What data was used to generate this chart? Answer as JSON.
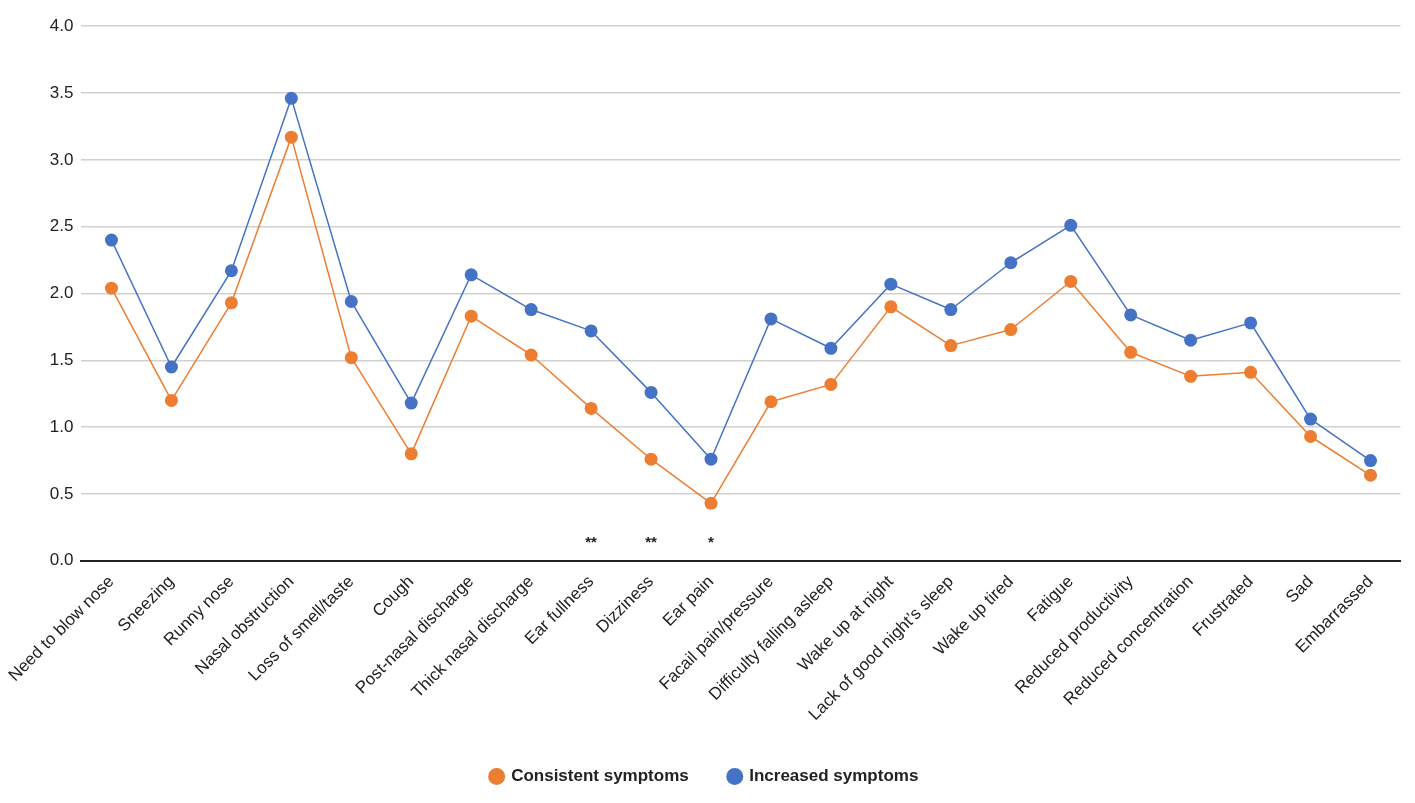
{
  "chart_data": {
    "type": "line",
    "categories": [
      "Need to blow nose",
      "Sneezing",
      "Runny nose",
      "Nasal obstruction",
      "Loss of smell/taste",
      "Cough",
      "Post-nasal discharge",
      "Thick nasal discharge",
      "Ear fullness",
      "Dizziness",
      "Ear pain",
      "Facail pain/pressure",
      "Difficulty falling asleep",
      "Wake up at night",
      "Lack of good night’s sleep",
      "Wake up tired",
      "Fatigue",
      "Reduced productivity",
      "Reduced concentration",
      "Frustrated",
      "Sad",
      "Embarrassed"
    ],
    "series": [
      {
        "name": "Consistent symptoms",
        "color": "#ed7d31",
        "values": [
          2.04,
          1.2,
          1.93,
          3.17,
          1.52,
          0.8,
          1.83,
          1.54,
          1.14,
          0.76,
          0.43,
          1.19,
          1.32,
          1.9,
          1.61,
          1.73,
          2.09,
          1.56,
          1.38,
          1.41,
          0.93,
          0.64
        ]
      },
      {
        "name": "Increased symptoms",
        "color": "#4472c4",
        "values": [
          2.4,
          1.45,
          2.17,
          3.46,
          1.94,
          1.18,
          2.14,
          1.88,
          1.72,
          1.26,
          0.76,
          1.81,
          1.59,
          2.07,
          1.88,
          2.23,
          2.51,
          1.84,
          1.65,
          1.78,
          1.06,
          0.75
        ]
      }
    ],
    "ylim": [
      0,
      4
    ],
    "yticks": [
      {
        "value": 0,
        "label": "0.0"
      },
      {
        "value": 0.5,
        "label": "0.5"
      },
      {
        "value": 1,
        "label": "1.0"
      },
      {
        "value": 1.5,
        "label": "1.5"
      },
      {
        "value": 2,
        "label": "2.0"
      },
      {
        "value": 2.5,
        "label": "2.5"
      },
      {
        "value": 3,
        "label": "3.0"
      },
      {
        "value": 3.5,
        "label": "3.5"
      },
      {
        "value": 4,
        "label": "4.0"
      }
    ],
    "grid": "y",
    "legend": "bottom",
    "marker": "circle",
    "line_style": "solid",
    "annotations": [
      "**",
      "**",
      "*"
    ]
  }
}
